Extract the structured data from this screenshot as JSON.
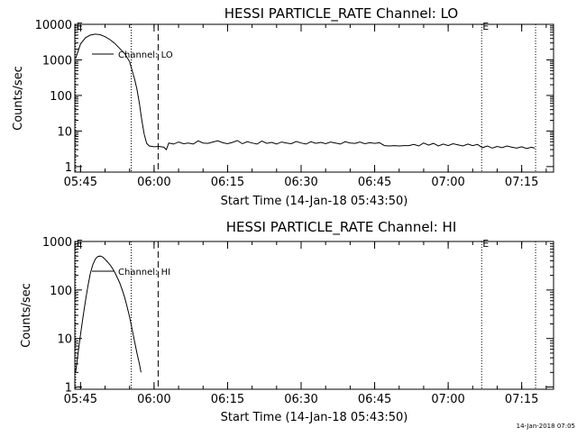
{
  "colors": {
    "background": "#ffffff",
    "foreground": "#000000"
  },
  "footer": {
    "timestamp": "14-Jan-2018 07:05"
  },
  "chart_data": [
    {
      "type": "line",
      "title": "HESSI PARTICLE_RATE Channel: LO",
      "xlabel": "Start Time (14-Jan-18 05:43:50)",
      "ylabel": "Counts/sec",
      "x_scale": "time",
      "y_scale": "log",
      "xlim": [
        "05:43:50",
        "07:21:30"
      ],
      "ylim": [
        0.7,
        10000
      ],
      "x_ticks": [
        "05:45",
        "06:00",
        "06:15",
        "06:30",
        "06:45",
        "07:00",
        "07:15"
      ],
      "y_ticks": [
        "1",
        "10",
        "100",
        "1000",
        "10000"
      ],
      "markers": [
        {
          "time": "05:44:00",
          "style": "dotted",
          "label": "E"
        },
        {
          "time": "05:55:20",
          "style": "dotted",
          "label": ""
        },
        {
          "time": "06:00:50",
          "style": "dashed",
          "label": ""
        },
        {
          "time": "07:06:50",
          "style": "dotted",
          "label": "E"
        },
        {
          "time": "07:17:50",
          "style": "dotted",
          "label": ""
        }
      ],
      "legend": {
        "position": "top-left",
        "entries": [
          "Channel: LO"
        ]
      },
      "series": [
        {
          "name": "Channel: LO",
          "x": [
            "05:44:00",
            "05:45:00",
            "05:46:00",
            "05:47:00",
            "05:48:00",
            "05:49:00",
            "05:50:00",
            "05:51:00",
            "05:52:00",
            "05:53:00",
            "05:54:00",
            "05:55:00",
            "05:56:00",
            "05:56:30",
            "05:57:00",
            "05:57:30",
            "05:58:00",
            "05:58:30",
            "05:59:00",
            "06:00:00",
            "06:01:00",
            "06:02:00",
            "06:02:30",
            "06:03:00",
            "06:04:00",
            "06:05:00",
            "06:06:00",
            "06:07:00",
            "06:08:00",
            "06:09:00",
            "06:10:00",
            "06:11:00",
            "06:12:00",
            "06:13:00",
            "06:14:00",
            "06:15:00",
            "06:16:00",
            "06:17:00",
            "06:18:00",
            "06:19:00",
            "06:20:00",
            "06:21:00",
            "06:22:00",
            "06:23:00",
            "06:24:00",
            "06:25:00",
            "06:26:00",
            "06:27:00",
            "06:28:00",
            "06:29:00",
            "06:30:00",
            "06:31:00",
            "06:32:00",
            "06:33:00",
            "06:34:00",
            "06:35:00",
            "06:36:00",
            "06:37:00",
            "06:38:00",
            "06:39:00",
            "06:40:00",
            "06:41:00",
            "06:42:00",
            "06:43:00",
            "06:44:00",
            "06:45:00",
            "06:46:00",
            "06:47:00",
            "06:48:00",
            "06:49:00",
            "06:50:00",
            "06:51:00",
            "06:52:00",
            "06:53:00",
            "06:54:00",
            "06:55:00",
            "06:56:00",
            "06:57:00",
            "06:58:00",
            "06:59:00",
            "07:00:00",
            "07:01:00",
            "07:02:00",
            "07:03:00",
            "07:04:00",
            "07:05:00",
            "07:06:00",
            "07:06:50",
            "07:07:00",
            "07:08:00",
            "07:09:00",
            "07:10:00",
            "07:11:00",
            "07:12:00",
            "07:13:00",
            "07:14:00",
            "07:15:00",
            "07:16:00",
            "07:17:00",
            "07:17:40"
          ],
          "y": [
            1100,
            2800,
            4200,
            5000,
            5300,
            5100,
            4500,
            3700,
            2900,
            2100,
            1500,
            900,
            300,
            150,
            60,
            20,
            8,
            4.5,
            3.8,
            3.6,
            3.7,
            3.5,
            3.0,
            4.6,
            4.3,
            4.9,
            4.4,
            4.6,
            4.3,
            5.3,
            4.6,
            4.5,
            4.9,
            5.3,
            4.7,
            4.4,
            4.8,
            5.4,
            4.4,
            5.0,
            4.6,
            4.3,
            5.2,
            4.5,
            4.8,
            4.3,
            4.9,
            4.6,
            4.4,
            5.1,
            4.6,
            4.3,
            5.0,
            4.5,
            4.8,
            4.4,
            4.9,
            4.6,
            4.3,
            5.0,
            4.6,
            4.5,
            4.9,
            4.4,
            4.7,
            4.5,
            4.7,
            3.9,
            3.8,
            3.9,
            3.8,
            3.9,
            3.9,
            4.2,
            3.8,
            4.6,
            4.0,
            4.5,
            3.8,
            4.3,
            3.9,
            4.4,
            4.1,
            3.8,
            4.3,
            3.9,
            4.2,
            3.5,
            3.4,
            3.8,
            3.3,
            3.7,
            3.4,
            3.8,
            3.5,
            3.3,
            3.6,
            3.2,
            3.5,
            3.3
          ]
        }
      ]
    },
    {
      "type": "line",
      "title": "HESSI PARTICLE_RATE Channel: HI",
      "xlabel": "Start Time (14-Jan-18 05:43:50)",
      "ylabel": "Counts/sec",
      "x_scale": "time",
      "y_scale": "log",
      "xlim": [
        "05:43:50",
        "07:21:30"
      ],
      "ylim": [
        0.9,
        1000
      ],
      "x_ticks": [
        "05:45",
        "06:00",
        "06:15",
        "06:30",
        "06:45",
        "07:00",
        "07:15"
      ],
      "y_ticks": [
        "1",
        "10",
        "100",
        "1000"
      ],
      "markers": [
        {
          "time": "05:44:00",
          "style": "dotted",
          "label": "E"
        },
        {
          "time": "05:55:20",
          "style": "dotted",
          "label": ""
        },
        {
          "time": "06:00:50",
          "style": "dashed",
          "label": ""
        },
        {
          "time": "07:06:50",
          "style": "dotted",
          "label": "E"
        },
        {
          "time": "07:17:50",
          "style": "dotted",
          "label": ""
        }
      ],
      "legend": {
        "position": "top-left",
        "entries": [
          "Channel: HI"
        ]
      },
      "series": [
        {
          "name": "Channel: HI",
          "x": [
            "05:44:00",
            "05:44:30",
            "05:45:00",
            "05:45:30",
            "05:46:00",
            "05:46:30",
            "05:47:00",
            "05:47:30",
            "05:48:00",
            "05:48:30",
            "05:49:00",
            "05:49:30",
            "05:50:00",
            "05:50:30",
            "05:51:00",
            "05:51:30",
            "05:52:00",
            "05:52:30",
            "05:53:00",
            "05:53:30",
            "05:54:00",
            "05:54:30",
            "05:55:00",
            "05:55:30",
            "05:56:00",
            "05:56:30",
            "05:57:00",
            "05:57:20"
          ],
          "y": [
            2.0,
            5.0,
            12,
            28,
            60,
            120,
            220,
            330,
            430,
            490,
            500,
            480,
            430,
            380,
            330,
            280,
            230,
            180,
            140,
            100,
            70,
            45,
            28,
            16,
            9,
            5,
            3,
            2
          ]
        }
      ]
    }
  ]
}
